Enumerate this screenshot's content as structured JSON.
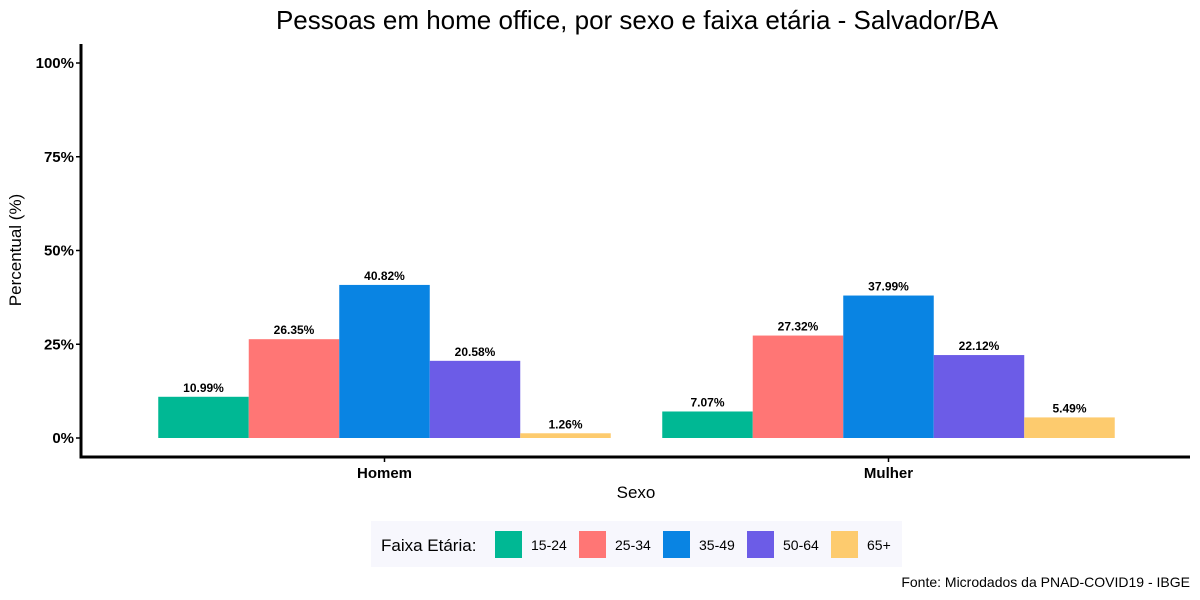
{
  "chart_data": {
    "type": "bar",
    "title": "Pessoas em home office, por sexo e faixa etária - Salvador/BA",
    "xlabel": "Sexo",
    "ylabel": "Percentual (%)",
    "categories": [
      "Homem",
      "Mulher"
    ],
    "ylim": [
      0,
      100
    ],
    "yticks": [
      "0%",
      "25%",
      "50%",
      "75%",
      "100%"
    ],
    "ytick_values": [
      0,
      25,
      50,
      75,
      100
    ],
    "legend": {
      "title": "Faixa Etária:",
      "placement": "bottom"
    },
    "series": [
      {
        "name": "15-24",
        "color": "#00B894",
        "values": [
          10.99,
          7.07
        ],
        "labels": [
          "10.99%",
          "7.07%"
        ]
      },
      {
        "name": "25-34",
        "color": "#FF7675",
        "values": [
          26.35,
          27.32
        ],
        "labels": [
          "26.35%",
          "27.32%"
        ]
      },
      {
        "name": "35-49",
        "color": "#0984E3",
        "values": [
          40.82,
          37.99
        ],
        "labels": [
          "40.82%",
          "37.99%"
        ]
      },
      {
        "name": "50-64",
        "color": "#6C5CE7",
        "values": [
          20.58,
          22.12
        ],
        "labels": [
          "20.58%",
          "22.12%"
        ]
      },
      {
        "name": "65+",
        "color": "#FDCB6E",
        "values": [
          1.26,
          5.49
        ],
        "labels": [
          "1.26%",
          "5.49%"
        ]
      }
    ],
    "grid": false,
    "caption": "Fonte: Microdados da PNAD-COVID19 - IBGE"
  }
}
